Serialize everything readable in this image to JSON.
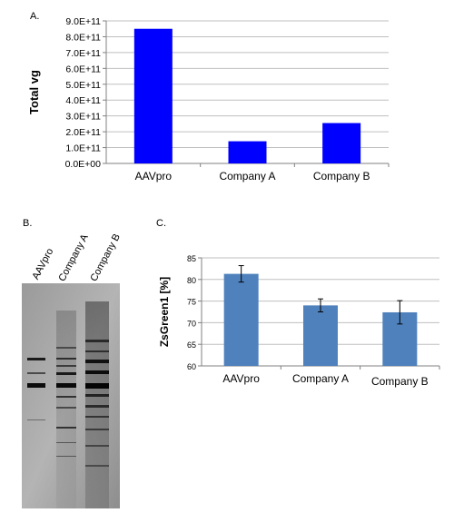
{
  "panels": {
    "a_label": "A.",
    "b_label": "B.",
    "c_label": "C."
  },
  "chart_data": [
    {
      "type": "bar",
      "ylabel": "Total vg",
      "categories": [
        "AAVpro",
        "Company A",
        "Company B"
      ],
      "values": [
        850000000000.0,
        140000000000.0,
        255000000000.0
      ],
      "ylim": [
        0,
        900000000000.0
      ],
      "yticks": [
        "0.0E+00",
        "1.0E+11",
        "2.0E+11",
        "3.0E+11",
        "4.0E+11",
        "5.0E+11",
        "6.0E+11",
        "7.0E+11",
        "8.0E+11",
        "9.0E+11"
      ],
      "grid": true,
      "color": "#0000ff"
    },
    {
      "type": "bar",
      "ylabel": "ZsGreen1 [%]",
      "categories": [
        "AAVpro",
        "Company A",
        "Company B"
      ],
      "values": [
        81.3,
        74.0,
        72.4
      ],
      "errors": [
        1.9,
        1.5,
        2.7
      ],
      "ylim": [
        60,
        85
      ],
      "yticks": [
        "60",
        "65",
        "70",
        "75",
        "80",
        "85"
      ],
      "grid": true,
      "color": "#4f81bd"
    }
  ],
  "gel": {
    "lanes": [
      "AAVpro",
      "Company A",
      "Company B"
    ]
  }
}
